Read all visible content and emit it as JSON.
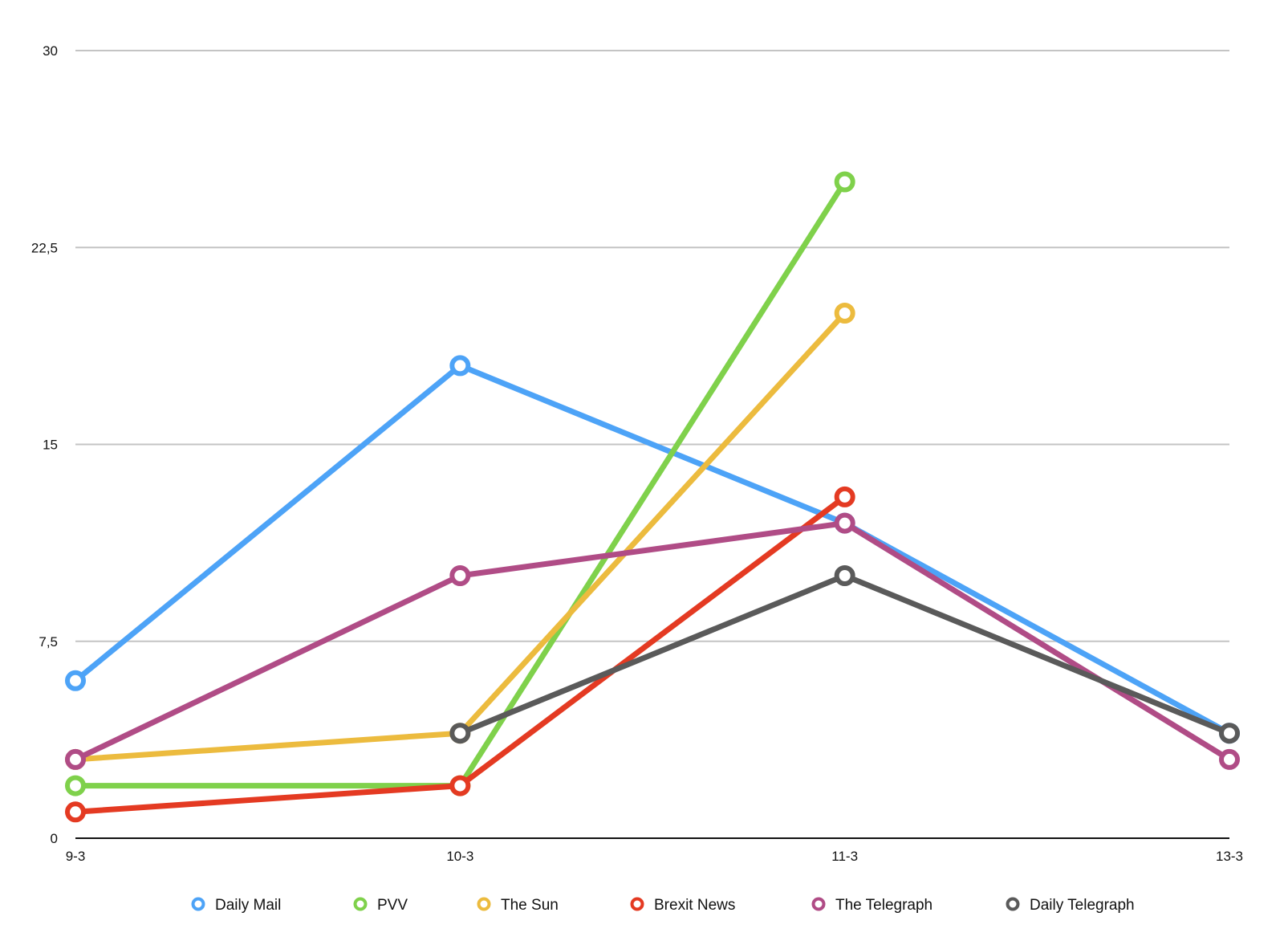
{
  "chart_data": {
    "type": "line",
    "title": "",
    "xlabel": "",
    "ylabel": "",
    "categories": [
      "9-3",
      "10-3",
      "11-3",
      "13-3"
    ],
    "y_ticks": [
      "0",
      "7,5",
      "15",
      "22,5",
      "30"
    ],
    "ylim": [
      0,
      30
    ],
    "grid": true,
    "legend_position": "bottom",
    "series": [
      {
        "name": "Daily Mail",
        "color": "#4DA3F7",
        "values": [
          6,
          18,
          12,
          4
        ]
      },
      {
        "name": "PVV",
        "color": "#7FD14B",
        "values": [
          2,
          2,
          25,
          null
        ]
      },
      {
        "name": "The Sun",
        "color": "#ECBB3E",
        "values": [
          3,
          4,
          20,
          null
        ]
      },
      {
        "name": "Brexit News",
        "color": "#E43A22",
        "values": [
          1,
          2,
          13,
          null
        ]
      },
      {
        "name": "The Telegraph",
        "color": "#B04C86",
        "values": [
          3,
          10,
          12,
          3
        ]
      },
      {
        "name": "Daily Telegraph",
        "color": "#5A5A5A",
        "values": [
          null,
          4,
          10,
          4
        ]
      }
    ]
  }
}
